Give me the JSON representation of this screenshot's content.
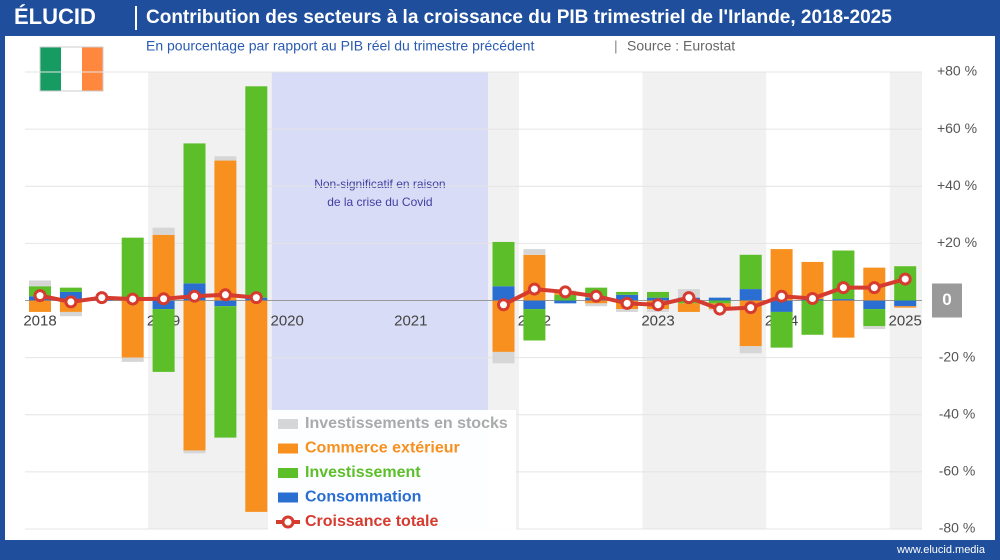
{
  "brand": "ÉLUCID",
  "footer": "www.elucid.media",
  "chart_data": {
    "type": "bar",
    "stacked": true,
    "title": "Contribution des secteurs à la croissance du PIB trimestriel de l'Irlande, 2018-2025",
    "subtitle": "En pourcentage par rapport au PIB réel du trimestre précédent",
    "source": "Source : Eurostat",
    "annotation": [
      "Non-significatif en raison",
      "de la crise du Covid"
    ],
    "categories": [
      "2018",
      null,
      null,
      null,
      "2019",
      null,
      null,
      null,
      "2020",
      null,
      null,
      null,
      "2021",
      null,
      null,
      null,
      "2022",
      null,
      null,
      null,
      "2023",
      null,
      null,
      null,
      "2024",
      null,
      null,
      null,
      "2025"
    ],
    "series": [
      {
        "name": "Investissements en stocks",
        "color": "#d6d6d6",
        "values": [
          2,
          -1.5,
          0,
          -1.5,
          2.5,
          -1,
          1.5,
          0,
          null,
          null,
          null,
          null,
          null,
          null,
          null,
          -4,
          2,
          0.5,
          -1,
          -1,
          -1,
          3,
          -0.5,
          -2.5,
          0,
          0,
          0,
          -1,
          0
        ]
      },
      {
        "name": "Commerce extérieur",
        "color": "#f7901e",
        "values": [
          -4,
          -4,
          0.2,
          -20,
          23,
          -52.5,
          49,
          -74,
          null,
          null,
          null,
          null,
          null,
          null,
          null,
          -18,
          16,
          1,
          -1,
          -3,
          -3,
          -3,
          -2,
          -16,
          18,
          13,
          -13,
          11.5,
          -0.5
        ]
      },
      {
        "name": "Investissement",
        "color": "#5cbf2a",
        "values": [
          3.5,
          1.5,
          0.3,
          21.5,
          -22,
          49,
          -46,
          74,
          null,
          null,
          null,
          null,
          null,
          null,
          null,
          15.5,
          -11,
          2,
          3.5,
          1,
          2,
          -1,
          -1,
          12,
          -12.5,
          -12,
          17,
          -6,
          12
        ]
      },
      {
        "name": "Consommation",
        "color": "#2a6ed1",
        "values": [
          1.5,
          3,
          0.5,
          0.5,
          -3,
          6,
          -2,
          1,
          null,
          null,
          null,
          null,
          null,
          null,
          null,
          5,
          -3,
          -1,
          1,
          2,
          1,
          1,
          1,
          4,
          -4,
          0.5,
          0.5,
          -3,
          -2
        ]
      },
      {
        "name": "Croissance totale",
        "color": "#d63b2f",
        "type": "line",
        "values": [
          1.7,
          -0.5,
          1,
          0.5,
          0.6,
          1.5,
          2,
          1,
          null,
          null,
          null,
          null,
          null,
          null,
          null,
          -1.5,
          4,
          3,
          1.5,
          -1,
          -1.5,
          1,
          -3,
          -2.5,
          1.5,
          0.7,
          4.5,
          4.5,
          7.5
        ]
      }
    ],
    "ylim": [
      -80,
      80
    ],
    "yticks": [
      {
        "value": 80,
        "label": "+80 %"
      },
      {
        "value": 60,
        "label": "+60 %"
      },
      {
        "value": 40,
        "label": "+40 %"
      },
      {
        "value": 20,
        "label": "+20 %"
      },
      0,
      {
        "value": -20,
        "label": "-20 %"
      },
      {
        "value": -40,
        "label": "-40 %"
      },
      {
        "value": -60,
        "label": "-60 %"
      },
      {
        "value": -80,
        "label": "-80 %"
      }
    ],
    "grid": true,
    "legend": "bottom-left"
  }
}
